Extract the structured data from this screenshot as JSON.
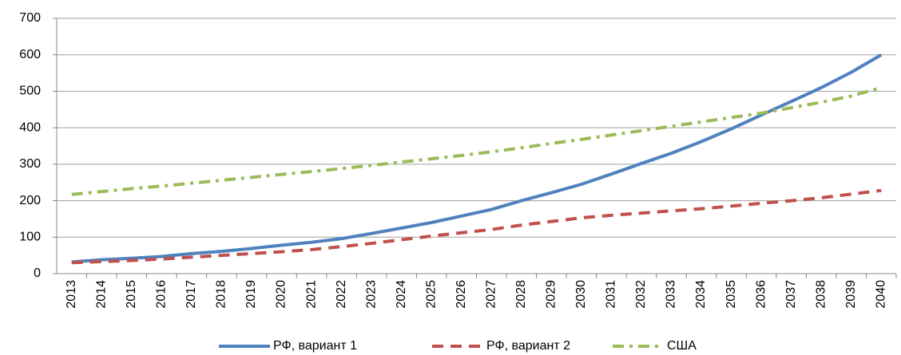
{
  "chart_data": {
    "type": "line",
    "categories": [
      "2013",
      "2014",
      "2015",
      "2016",
      "2017",
      "2018",
      "2019",
      "2020",
      "2021",
      "2022",
      "2023",
      "2024",
      "2025",
      "2026",
      "2027",
      "2028",
      "2029",
      "2030",
      "2031",
      "2032",
      "2033",
      "2034",
      "2035",
      "2036",
      "2037",
      "2038",
      "2039",
      "2040"
    ],
    "series": [
      {
        "name": "РФ, вариант 1",
        "color": "#4f81bd",
        "style": "solid",
        "values": [
          32,
          38,
          42,
          47,
          55,
          61,
          69,
          78,
          86,
          96,
          110,
          125,
          140,
          158,
          176,
          200,
          222,
          245,
          273,
          302,
          330,
          362,
          397,
          435,
          472,
          510,
          552,
          600
        ]
      },
      {
        "name": "РФ, вариант 2",
        "color": "#c0504d",
        "style": "dashed",
        "values": [
          30,
          33,
          36,
          40,
          45,
          50,
          55,
          60,
          66,
          74,
          83,
          93,
          103,
          112,
          121,
          133,
          143,
          153,
          160,
          166,
          172,
          178,
          185,
          193,
          200,
          208,
          218,
          228
        ]
      },
      {
        "name": "США",
        "color": "#9bbb59",
        "style": "dashdot",
        "values": [
          217,
          225,
          233,
          240,
          248,
          256,
          264,
          272,
          280,
          288,
          297,
          306,
          315,
          324,
          334,
          345,
          357,
          368,
          380,
          392,
          404,
          416,
          428,
          440,
          455,
          470,
          487,
          510
        ]
      }
    ],
    "ylim": [
      0,
      700
    ],
    "yticks": [
      0,
      100,
      200,
      300,
      400,
      500,
      600,
      700
    ],
    "grid": true,
    "legend": "bottom"
  }
}
